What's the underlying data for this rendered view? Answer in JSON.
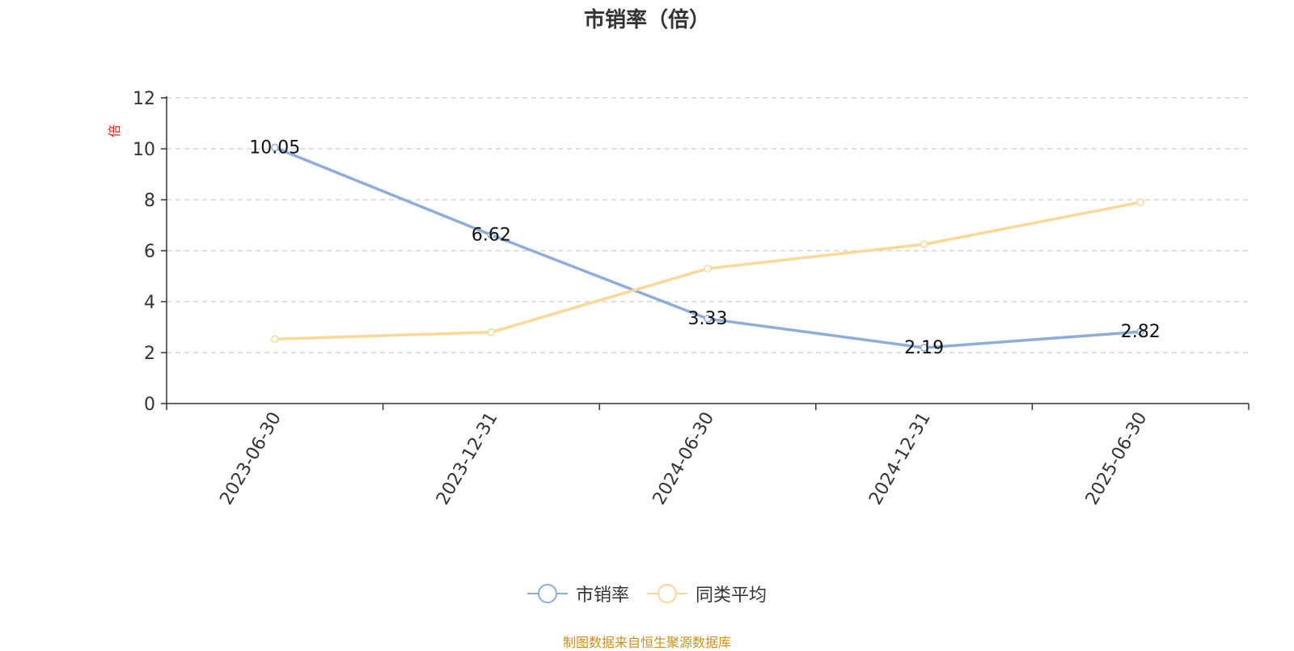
{
  "chart_data": {
    "type": "line",
    "title": "市销率（倍）",
    "ylabel": "倍",
    "x": [
      "2023-06-30",
      "2023-12-31",
      "2024-06-30",
      "2024-12-31",
      "2025-06-30"
    ],
    "ylim": [
      0,
      12
    ],
    "yticks": [
      0,
      2,
      4,
      6,
      8,
      10,
      12
    ],
    "grid": true,
    "legend_position": "bottom",
    "series": [
      {
        "name": "市销率",
        "color": "#8eaed8",
        "values": [
          10.05,
          6.62,
          3.33,
          2.19,
          2.82
        ],
        "show_labels": true
      },
      {
        "name": "同类平均",
        "color": "#f9d898",
        "values": [
          2.53,
          2.8,
          5.3,
          6.25,
          7.9
        ],
        "show_labels": false
      }
    ]
  },
  "footer": "制图数据来自恒生聚源数据库"
}
